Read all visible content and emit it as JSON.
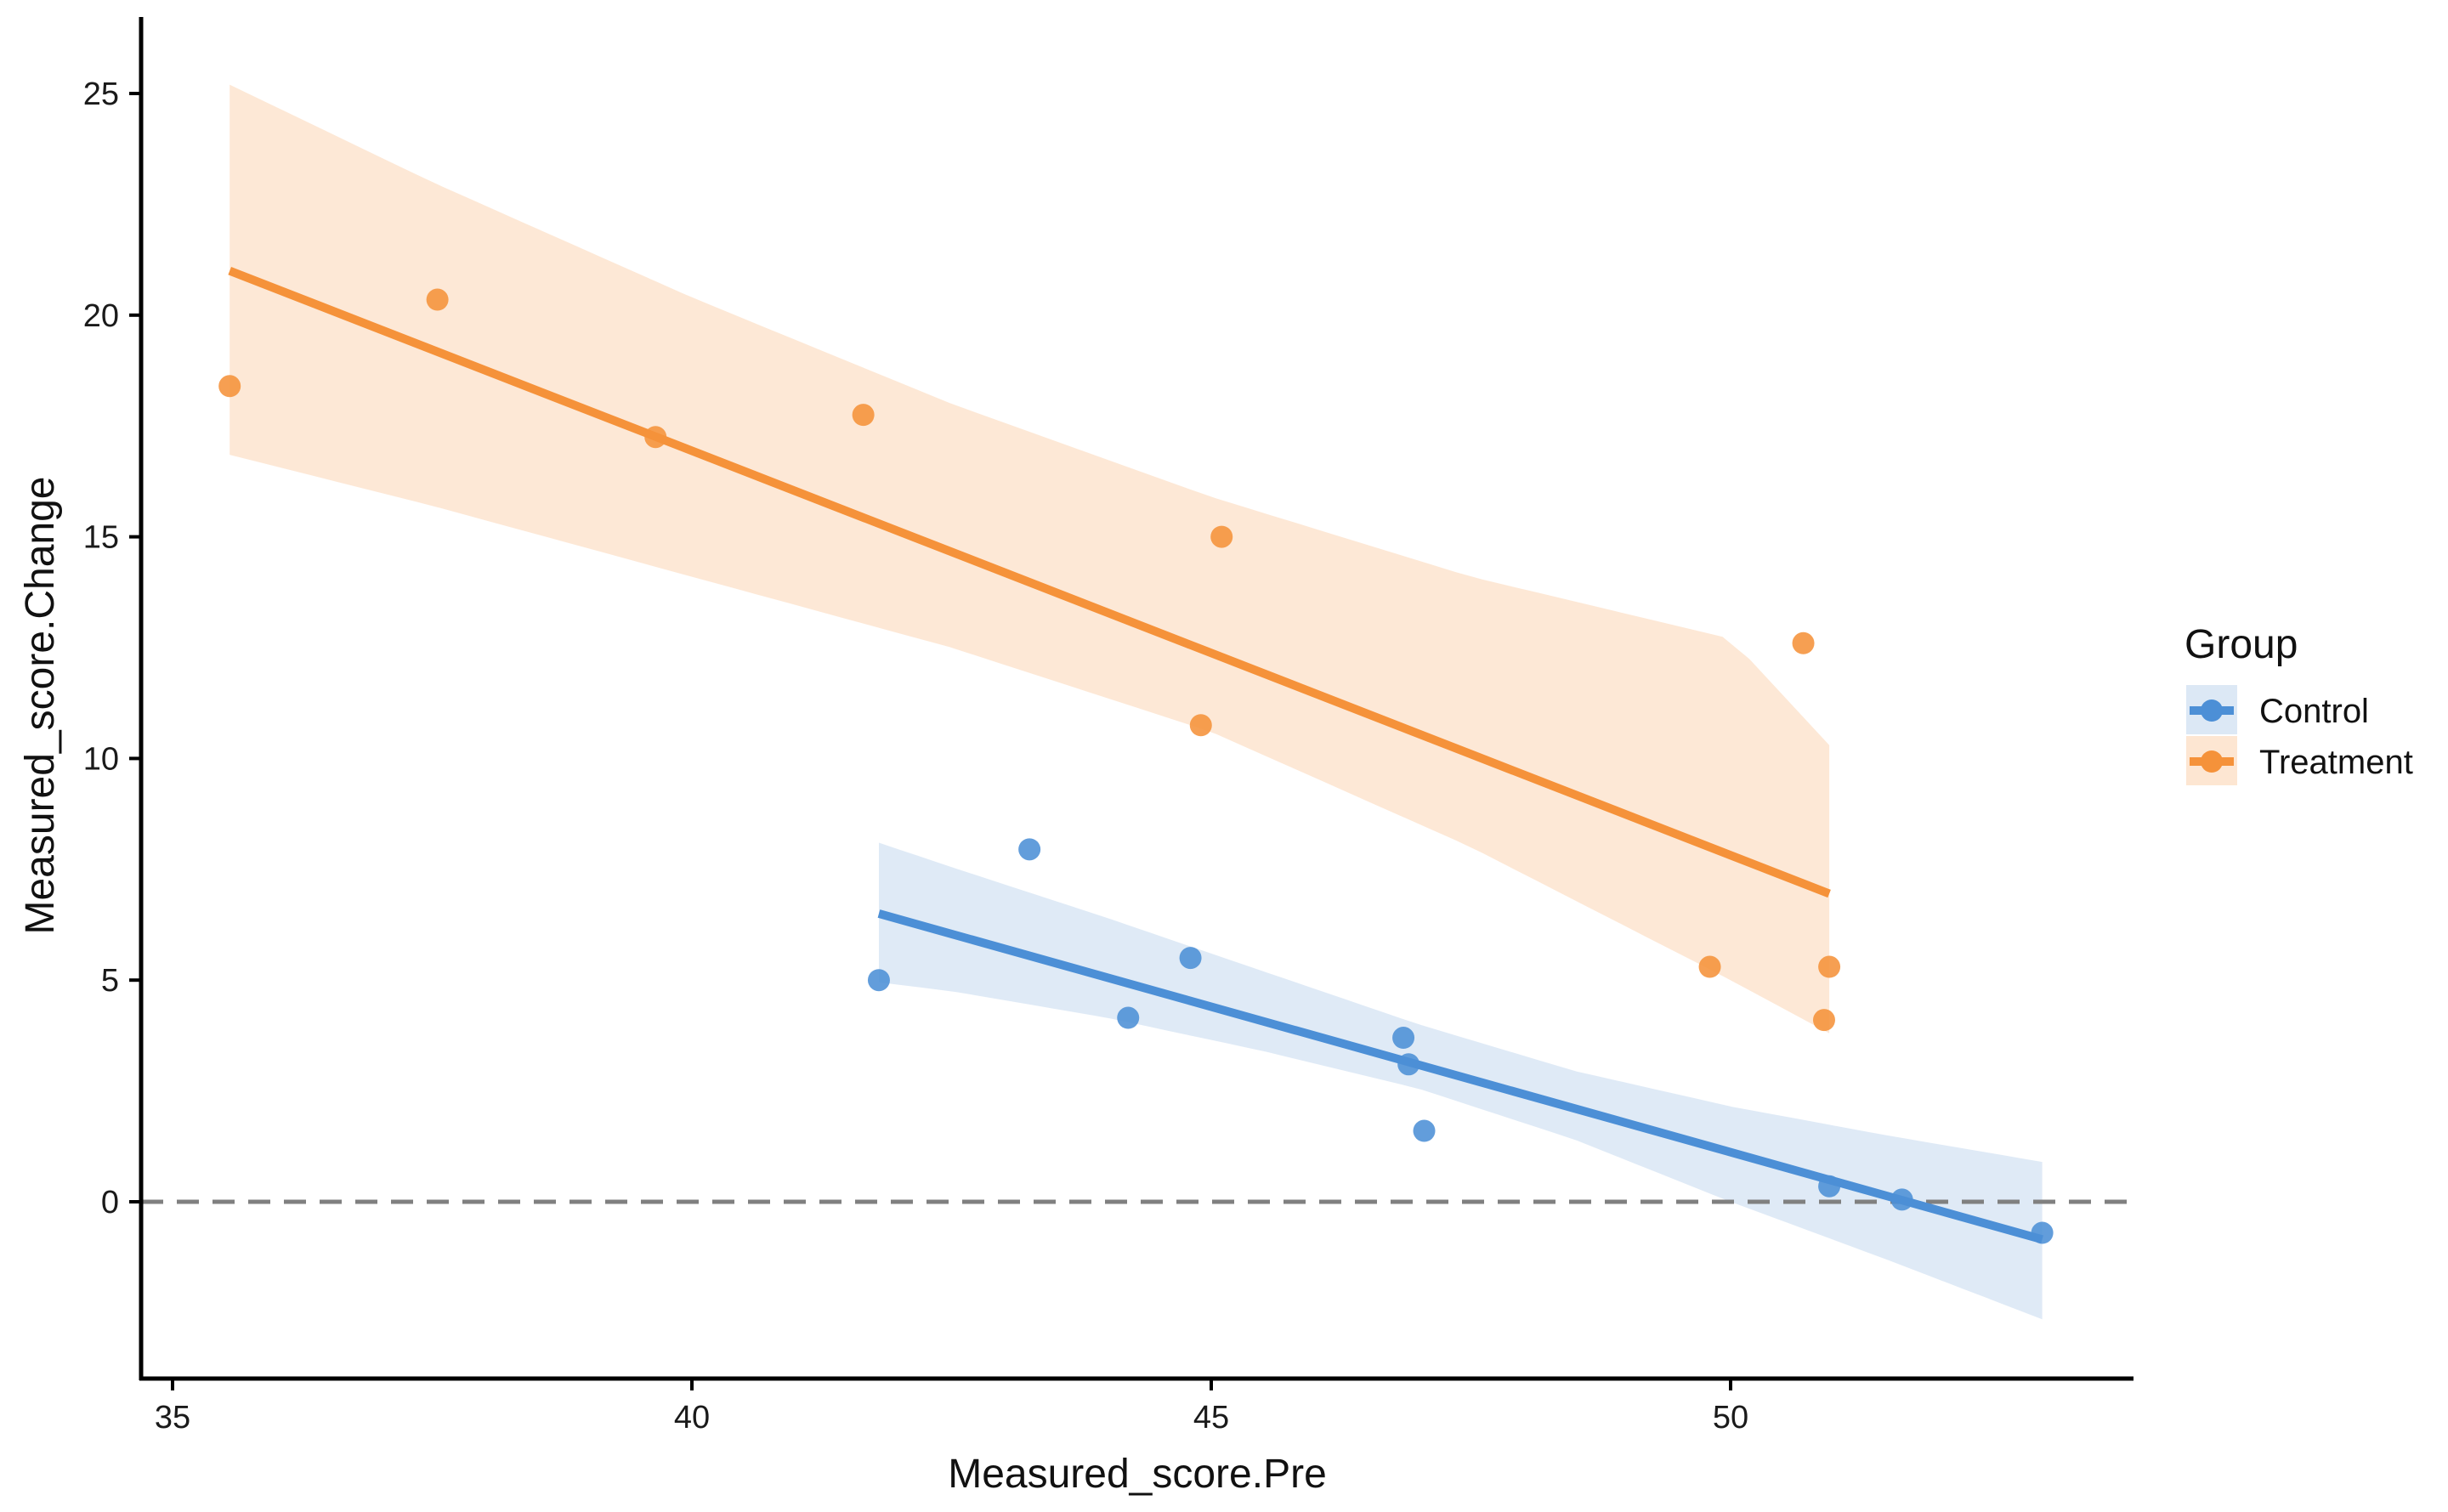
{
  "chart_data": {
    "type": "scatter",
    "xlabel": "Measured_score.Pre",
    "ylabel": "Measured_score.Change",
    "xlim": [
      34.7,
      54.0
    ],
    "ylim": [
      -4.0,
      26.6
    ],
    "x_ticks": [
      35,
      40,
      45,
      50
    ],
    "y_ticks": [
      0,
      5,
      10,
      15,
      20,
      25
    ],
    "x_tick_labels": [
      "35",
      "40",
      "45",
      "50"
    ],
    "y_tick_labels": [
      "0",
      "5",
      "10",
      "15",
      "20",
      "25"
    ],
    "reference_line": {
      "y": 0,
      "style": "dashed",
      "color": "#808080"
    },
    "grid": false,
    "legend": {
      "title": "Group",
      "position": "right",
      "entries": [
        "Control",
        "Treatment"
      ]
    },
    "series": [
      {
        "name": "Treatment",
        "color": "#F5923A",
        "band_color": "#FDE6D2",
        "points": [
          [
            35.55,
            18.4
          ],
          [
            37.55,
            20.35
          ],
          [
            39.65,
            17.25
          ],
          [
            41.65,
            17.75
          ],
          [
            44.9,
            10.75
          ],
          [
            45.1,
            15.0
          ],
          [
            49.8,
            5.3
          ],
          [
            50.7,
            12.6
          ],
          [
            50.9,
            4.1
          ],
          [
            50.95,
            5.3
          ]
        ],
        "fit": {
          "x0": 35.55,
          "y0": 21.0,
          "x1": 50.95,
          "y1": 6.95
        },
        "band": {
          "x": [
            35.55,
            37.5,
            40.0,
            42.5,
            45.0,
            47.5,
            50.0,
            50.95
          ],
          "upper": [
            25.2,
            23.0,
            20.4,
            18.0,
            15.9,
            14.1,
            12.7,
            10.3
          ],
          "lower": [
            16.85,
            15.7,
            14.1,
            12.5,
            10.6,
            8.0,
            5.0,
            3.8
          ]
        }
      },
      {
        "name": "Control",
        "color": "#4C8FD6",
        "band_color": "#DCE8F5",
        "points": [
          [
            41.8,
            5.0
          ],
          [
            43.25,
            7.95
          ],
          [
            44.2,
            4.15
          ],
          [
            44.8,
            5.5
          ],
          [
            46.85,
            3.7
          ],
          [
            46.9,
            3.1
          ],
          [
            47.05,
            1.6
          ],
          [
            50.95,
            0.35
          ],
          [
            51.65,
            0.05
          ],
          [
            53.0,
            -0.7
          ]
        ],
        "fit": {
          "x0": 41.8,
          "y0": 6.5,
          "x1": 53.0,
          "y1": -0.85
        },
        "band": {
          "x": [
            41.8,
            42.5,
            44.0,
            45.5,
            47.0,
            48.5,
            50.0,
            51.5,
            53.0
          ],
          "upper": [
            8.1,
            7.55,
            6.4,
            5.2,
            4.0,
            2.95,
            2.15,
            1.5,
            0.9
          ],
          "lower": [
            4.95,
            4.75,
            4.15,
            3.4,
            2.55,
            1.4,
            0.0,
            -1.3,
            -2.65
          ]
        }
      }
    ]
  }
}
